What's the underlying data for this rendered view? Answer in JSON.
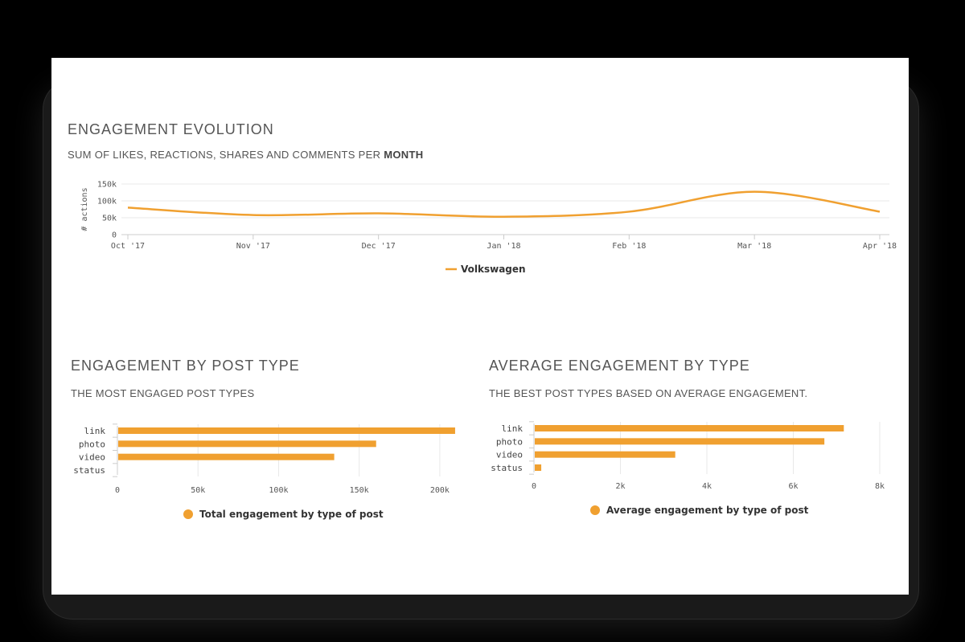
{
  "colors": {
    "series": "#F0A030",
    "grid": "#E8E8E8",
    "axis": "#CCCCCC"
  },
  "sections": {
    "evolution": {
      "title": "ENGAGEMENT EVOLUTION",
      "subtitle_prefix": "SUM OF LIKES, REACTIONS, SHARES AND COMMENTS PER",
      "subtitle_bold": "MONTH"
    },
    "post_type": {
      "title": "ENGAGEMENT BY POST TYPE",
      "subtitle": "THE MOST ENGAGED POST TYPES"
    },
    "avg_type": {
      "title": "AVERAGE ENGAGEMENT BY TYPE",
      "subtitle": "THE BEST POST TYPES BASED ON AVERAGE ENGAGEMENT."
    }
  },
  "chart_data": [
    {
      "type": "line",
      "ylabel": "# actions",
      "ylim": [
        0,
        150000
      ],
      "y_ticks": [
        0,
        50000,
        100000,
        150000
      ],
      "y_tick_labels": [
        "0",
        "50k",
        "100k",
        "150k"
      ],
      "x_tick_labels": [
        "Oct '17",
        "Nov '17",
        "Dec '17",
        "Jan '18",
        "Feb '18",
        "Mar '18",
        "Apr '18"
      ],
      "x": [
        "Oct '17",
        "Nov '17",
        "Dec '17",
        "Jan '18",
        "Feb '18",
        "Mar '18",
        "Apr '18"
      ],
      "series": [
        {
          "name": "Volkswagen",
          "values": [
            80000,
            58000,
            63000,
            53000,
            68000,
            127000,
            68000
          ]
        }
      ],
      "grid": true,
      "legend": "bottom-center"
    },
    {
      "type": "bar",
      "orientation": "horizontal",
      "categories": [
        "link",
        "photo",
        "video",
        "status"
      ],
      "series": [
        {
          "name": "Total engagement by type of post",
          "values": [
            209000,
            160000,
            134000,
            0
          ]
        }
      ],
      "xlim": [
        0,
        220000
      ],
      "x_ticks": [
        0,
        50000,
        100000,
        150000,
        200000
      ],
      "x_tick_labels": [
        "0",
        "50k",
        "100k",
        "150k",
        "200k"
      ],
      "grid": true,
      "legend": "bottom-center"
    },
    {
      "type": "bar",
      "orientation": "horizontal",
      "categories": [
        "link",
        "photo",
        "video",
        "status"
      ],
      "series": [
        {
          "name": "Average engagement by type of post",
          "values": [
            7150,
            6700,
            3250,
            150
          ]
        }
      ],
      "xlim": [
        0,
        8000
      ],
      "x_ticks": [
        0,
        2000,
        4000,
        6000,
        8000
      ],
      "x_tick_labels": [
        "0",
        "2k",
        "4k",
        "6k",
        "8k"
      ],
      "grid": true,
      "legend": "bottom-center"
    }
  ]
}
